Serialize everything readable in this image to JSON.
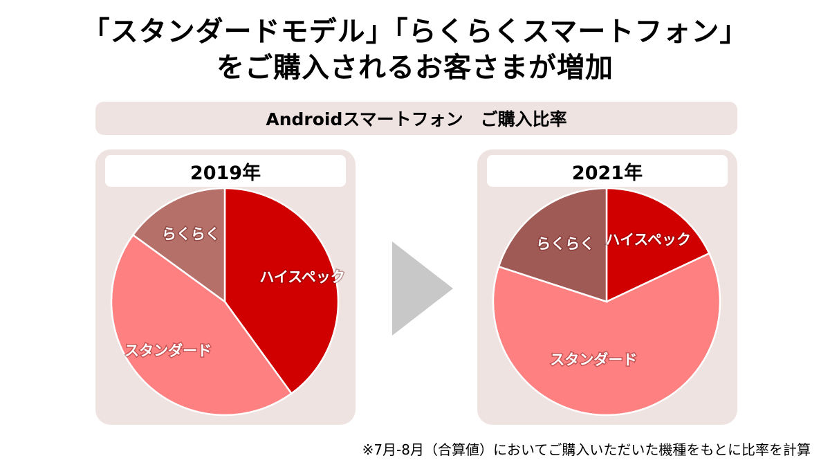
{
  "title": {
    "line1": "「スタンダードモデル」「らくらくスマートフォン」",
    "line2": "をご購入されるお客さまが増加"
  },
  "subtitle": "Androidスマートフォン　ご購入比率",
  "footnote": "※7月-8月（合算値）においてご購入いただいた機種をもとに比率を計算",
  "colors": {
    "highspec": "#d00000",
    "standard": "#ff8080",
    "rakuraku": "#a9615b",
    "panel_bg": "#efe3e1",
    "arrow": "#c8c8c8"
  },
  "chart_data": [
    {
      "type": "pie",
      "title": "2019年",
      "slices": [
        {
          "label": "ハイスペック",
          "value": 40,
          "color": "#d00000"
        },
        {
          "label": "スタンダード",
          "value": 45,
          "color": "#ff8080"
        },
        {
          "label": "らくらく",
          "value": 15,
          "color": "#b5706a"
        }
      ]
    },
    {
      "type": "pie",
      "title": "2021年",
      "slices": [
        {
          "label": "ハイスペック",
          "value": 18,
          "color": "#d00000"
        },
        {
          "label": "スタンダード",
          "value": 62,
          "color": "#ff8080"
        },
        {
          "label": "らくらく",
          "value": 20,
          "color": "#a05a55"
        }
      ]
    }
  ]
}
